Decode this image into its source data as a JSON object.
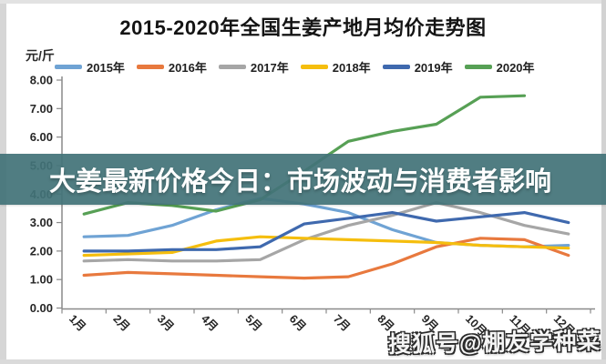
{
  "title": "2015-2020年全国生姜产地月均价走势图",
  "unit_label": "元/斤",
  "overlay_banner": {
    "text": "大姜最新价格今日：市场波动与消费者影响",
    "bg_color": "#437379",
    "text_color": "#ffffff"
  },
  "watermark": {
    "text": "搜狐号@棚友学种菜"
  },
  "chart_data": {
    "type": "line",
    "title": "2015-2020年全国生姜产地月均价走势图",
    "ylabel": "元/斤",
    "xlabel": "",
    "ylim": [
      0,
      8
    ],
    "grid": false,
    "legend_position": "top",
    "y_ticks": [
      "8.00",
      "7.00",
      "6.00",
      "5.00",
      "4.00",
      "3.00",
      "2.00",
      "1.00",
      "0.00"
    ],
    "categories": [
      "1月",
      "2月",
      "3月",
      "4月",
      "5月",
      "6月",
      "7月",
      "8月",
      "9月",
      "10月",
      "11月",
      "12月"
    ],
    "series": [
      {
        "name": "2015年",
        "color": "#6FA3D4",
        "values": [
          2.5,
          2.55,
          2.9,
          3.45,
          3.85,
          3.65,
          3.35,
          2.75,
          2.3,
          2.2,
          2.15,
          2.2
        ]
      },
      {
        "name": "2016年",
        "color": "#E8793E",
        "values": [
          1.15,
          1.25,
          1.2,
          1.15,
          1.1,
          1.05,
          1.1,
          1.55,
          2.15,
          2.45,
          2.4,
          1.85
        ]
      },
      {
        "name": "2017年",
        "color": "#A6A6A6",
        "values": [
          1.65,
          1.7,
          1.65,
          1.65,
          1.7,
          2.4,
          2.9,
          3.25,
          3.7,
          3.35,
          2.9,
          2.6
        ]
      },
      {
        "name": "2018年",
        "color": "#F5BE0E",
        "values": [
          1.85,
          1.9,
          1.95,
          2.35,
          2.5,
          2.45,
          2.4,
          2.35,
          2.3,
          2.2,
          2.15,
          2.1
        ]
      },
      {
        "name": "2019年",
        "color": "#3F69AE",
        "values": [
          2.0,
          2.0,
          2.05,
          2.05,
          2.15,
          2.95,
          3.15,
          3.35,
          3.05,
          3.2,
          3.35,
          3.0
        ]
      },
      {
        "name": "2020年",
        "color": "#57A055",
        "values": [
          3.3,
          3.7,
          3.6,
          3.4,
          3.8,
          4.8,
          5.85,
          6.2,
          6.45,
          7.4,
          7.45,
          null
        ]
      }
    ]
  }
}
